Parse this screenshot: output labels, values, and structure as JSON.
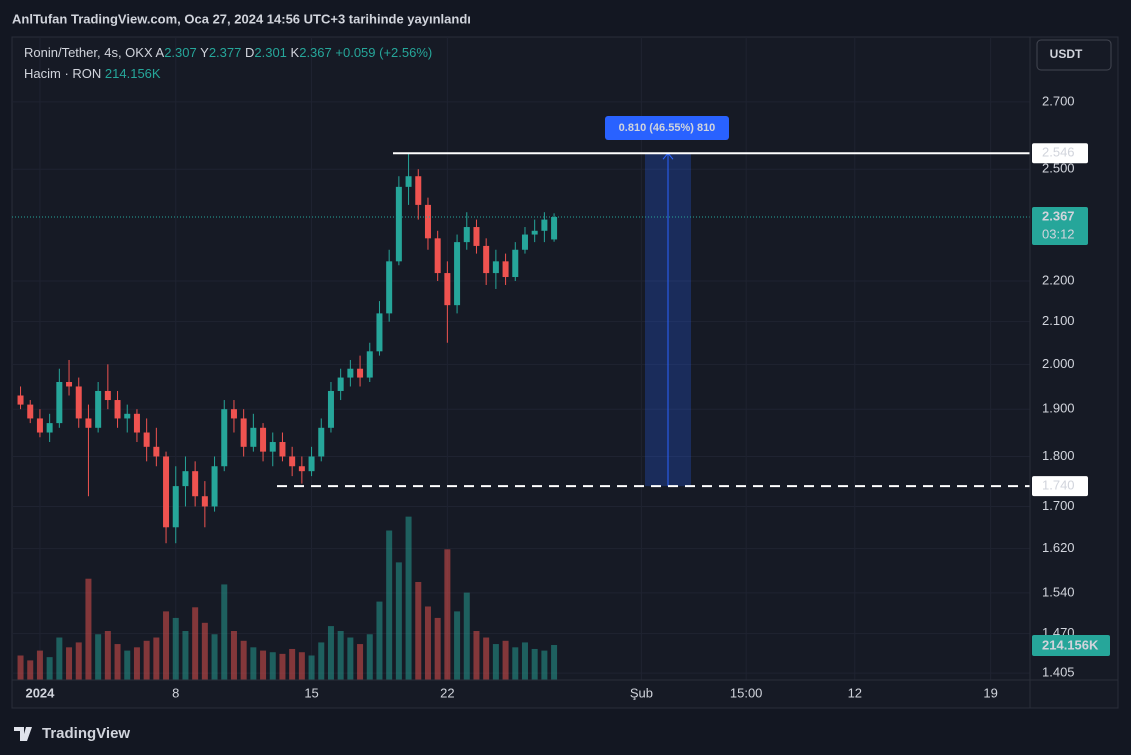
{
  "header": {
    "published": "AnlTufan TradingView.com, Oca 27, 2024 14:56 UTC+3 tarihinde yayınlandı",
    "symbol": "Ronin/Tether, 4s, OKX",
    "ohlc": [
      {
        "key": "A",
        "value": "2.307"
      },
      {
        "key": "Y",
        "value": "2.377"
      },
      {
        "key": "D",
        "value": "2.301"
      },
      {
        "key": "K",
        "value": "2.367"
      }
    ],
    "change": "+0.059 (+2.56%)",
    "volume_name": "Hacim · RON",
    "volume_value": "214.156K",
    "currency": "USDT",
    "brand": "TradingView"
  },
  "chart_data": {
    "type": "candlestick",
    "x": [
      -1,
      -0.5,
      0,
      0.5,
      1,
      1.5,
      2,
      2.5,
      3,
      3.5,
      4,
      4.5,
      5,
      5.5,
      6,
      6.5,
      7,
      7.5,
      8,
      8.5,
      9,
      9.5,
      10,
      10.5,
      11,
      11.5,
      12,
      12.5,
      13,
      13.5,
      14,
      14.5,
      15,
      15.5,
      16,
      16.5,
      17,
      17.5,
      18,
      18.5,
      19,
      19.5,
      20,
      20.5,
      21,
      21.5,
      22,
      22.5,
      23,
      23.5,
      24,
      24.5,
      25,
      25.5,
      26,
      26.5
    ],
    "open": [
      1.93,
      1.91,
      1.88,
      1.85,
      1.87,
      1.96,
      1.95,
      1.88,
      1.86,
      1.94,
      1.92,
      1.88,
      1.89,
      1.85,
      1.82,
      1.8,
      1.66,
      1.74,
      1.77,
      1.72,
      1.7,
      1.78,
      1.9,
      1.88,
      1.82,
      1.86,
      1.81,
      1.83,
      1.8,
      1.78,
      1.77,
      1.8,
      1.86,
      1.94,
      1.97,
      1.99,
      1.97,
      2.03,
      2.12,
      2.25,
      2.45,
      2.48,
      2.4,
      2.31,
      2.22,
      2.14,
      2.3,
      2.34,
      2.29,
      2.22,
      2.25,
      2.21,
      2.28,
      2.32,
      2.33,
      2.307
    ],
    "high": [
      1.95,
      1.92,
      1.9,
      1.89,
      1.99,
      2.01,
      1.97,
      1.91,
      1.96,
      2.0,
      1.94,
      1.91,
      1.9,
      1.88,
      1.86,
      1.81,
      1.78,
      1.8,
      1.79,
      1.75,
      1.8,
      1.92,
      1.92,
      1.9,
      1.89,
      1.87,
      1.85,
      1.85,
      1.82,
      1.8,
      1.82,
      1.88,
      1.96,
      1.99,
      2.01,
      2.02,
      2.05,
      2.15,
      2.28,
      2.48,
      2.546,
      2.5,
      2.42,
      2.33,
      2.25,
      2.32,
      2.38,
      2.36,
      2.31,
      2.28,
      2.27,
      2.3,
      2.34,
      2.36,
      2.38,
      2.377
    ],
    "low": [
      1.9,
      1.87,
      1.84,
      1.83,
      1.86,
      1.93,
      1.86,
      1.72,
      1.85,
      1.9,
      1.86,
      1.85,
      1.83,
      1.79,
      1.78,
      1.63,
      1.63,
      1.7,
      1.7,
      1.66,
      1.69,
      1.77,
      1.85,
      1.8,
      1.81,
      1.79,
      1.78,
      1.79,
      1.76,
      1.745,
      1.76,
      1.79,
      1.85,
      1.92,
      1.95,
      1.95,
      1.96,
      2.02,
      2.1,
      2.24,
      2.4,
      2.36,
      2.28,
      2.2,
      2.05,
      2.12,
      2.28,
      2.27,
      2.19,
      2.18,
      2.19,
      2.2,
      2.27,
      2.3,
      2.3,
      2.301
    ],
    "close": [
      1.91,
      1.88,
      1.85,
      1.87,
      1.96,
      1.95,
      1.88,
      1.86,
      1.94,
      1.92,
      1.88,
      1.89,
      1.85,
      1.82,
      1.8,
      1.66,
      1.74,
      1.77,
      1.72,
      1.7,
      1.78,
      1.9,
      1.88,
      1.82,
      1.86,
      1.81,
      1.83,
      1.8,
      1.78,
      1.77,
      1.8,
      1.86,
      1.94,
      1.97,
      1.99,
      1.97,
      2.03,
      2.12,
      2.25,
      2.45,
      2.48,
      2.4,
      2.31,
      2.22,
      2.14,
      2.3,
      2.34,
      2.29,
      2.22,
      2.25,
      2.21,
      2.28,
      2.32,
      2.33,
      2.36,
      2.367
    ],
    "volume": [
      150000,
      120000,
      180000,
      140000,
      260000,
      200000,
      230000,
      620000,
      280000,
      300000,
      220000,
      180000,
      200000,
      240000,
      260000,
      420000,
      380000,
      300000,
      445000,
      350000,
      280000,
      585000,
      300000,
      240000,
      200000,
      180000,
      170000,
      160000,
      190000,
      170000,
      150000,
      230000,
      330000,
      300000,
      260000,
      220000,
      280000,
      480000,
      915000,
      720000,
      1000000,
      600000,
      450000,
      380000,
      800000,
      420000,
      535000,
      300000,
      260000,
      220000,
      240000,
      200000,
      230000,
      190000,
      180000,
      214156
    ],
    "up_color": "#26a69a",
    "down_color": "#ef5350",
    "log_scale": true,
    "grid": true,
    "xlim": [
      -1.44,
      51.03
    ],
    "xticks": [
      {
        "value": 0,
        "label": "2024"
      },
      {
        "value": 7,
        "label": "8"
      },
      {
        "value": 14,
        "label": "15"
      },
      {
        "value": 21,
        "label": "22"
      },
      {
        "value": 31,
        "label": "Şub"
      },
      {
        "value": 36.4,
        "label": "15:00"
      },
      {
        "value": 42,
        "label": "12"
      },
      {
        "value": 49,
        "label": "19"
      }
    ],
    "ylim": [
      1.394,
      2.908
    ],
    "yticks": [
      {
        "value": 1.405,
        "label": "1.405"
      },
      {
        "value": 1.47,
        "label": "1.470"
      },
      {
        "value": 1.54,
        "label": "1.540"
      },
      {
        "value": 1.62,
        "label": "1.620"
      },
      {
        "value": 1.7,
        "label": "1.700"
      },
      {
        "value": 1.8,
        "label": "1.800"
      },
      {
        "value": 1.9,
        "label": "1.900"
      },
      {
        "value": 2.0,
        "label": "2.000"
      },
      {
        "value": 2.1,
        "label": "2.100"
      },
      {
        "value": 2.2,
        "label": "2.200"
      },
      {
        "value": 2.5,
        "label": "2.500"
      },
      {
        "value": 2.7,
        "label": "2.700"
      }
    ],
    "volume_ylim": [
      0,
      1010000
    ],
    "price_line": {
      "value": 2.367,
      "label": "2.367",
      "countdown": "03:12"
    },
    "volume_label": {
      "value": 214156,
      "label": "214.156K"
    },
    "levels": [
      {
        "value": 2.546,
        "label": "2.546",
        "style": "solid"
      },
      {
        "value": 1.74,
        "label": "1.740",
        "style": "dashed"
      }
    ],
    "measure": {
      "label": "0.810 (46.55%) 810",
      "color": "#2962ff"
    }
  }
}
